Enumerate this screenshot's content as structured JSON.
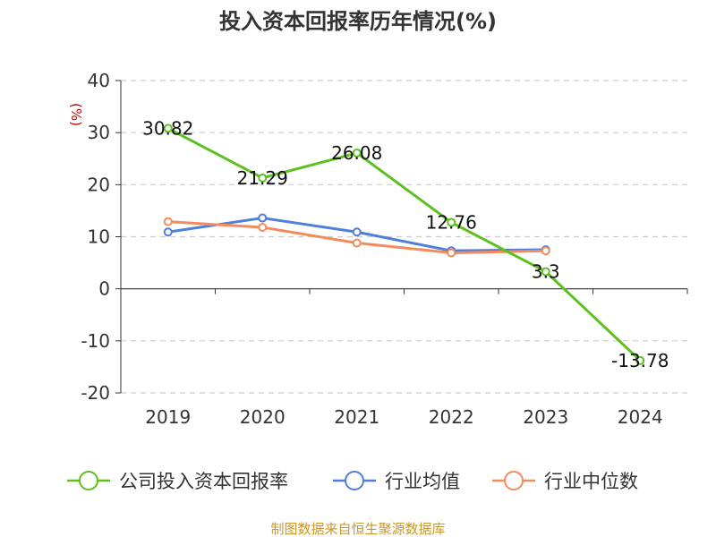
{
  "chart_data": {
    "type": "line",
    "title": "投入资本回报率历年情况(%)",
    "ylabel": "(%)",
    "categories": [
      "2019",
      "2020",
      "2021",
      "2022",
      "2023",
      "2024"
    ],
    "yticks": [
      "40",
      "30",
      "20",
      "10",
      "0",
      "-10",
      "-20"
    ],
    "ylim": [
      -20,
      40
    ],
    "grid": true,
    "legend_position": "bottom",
    "series": [
      {
        "name": "公司投入资本回报率",
        "color": "#5cc01e",
        "values": [
          30.82,
          21.29,
          26.08,
          12.76,
          3.3,
          -13.78
        ],
        "labels": [
          "30.82",
          "21.29",
          "26.08",
          "12.76",
          "3.3",
          "-13.78"
        ]
      },
      {
        "name": "行业均值",
        "color": "#4e7fdc",
        "values": [
          10.9,
          13.6,
          10.9,
          7.3,
          7.5,
          null
        ]
      },
      {
        "name": "行业中位数",
        "color": "#f58b5c",
        "values": [
          12.9,
          11.8,
          8.8,
          6.9,
          7.3,
          null
        ]
      }
    ]
  },
  "source": "制图数据来自恒生聚源数据库"
}
